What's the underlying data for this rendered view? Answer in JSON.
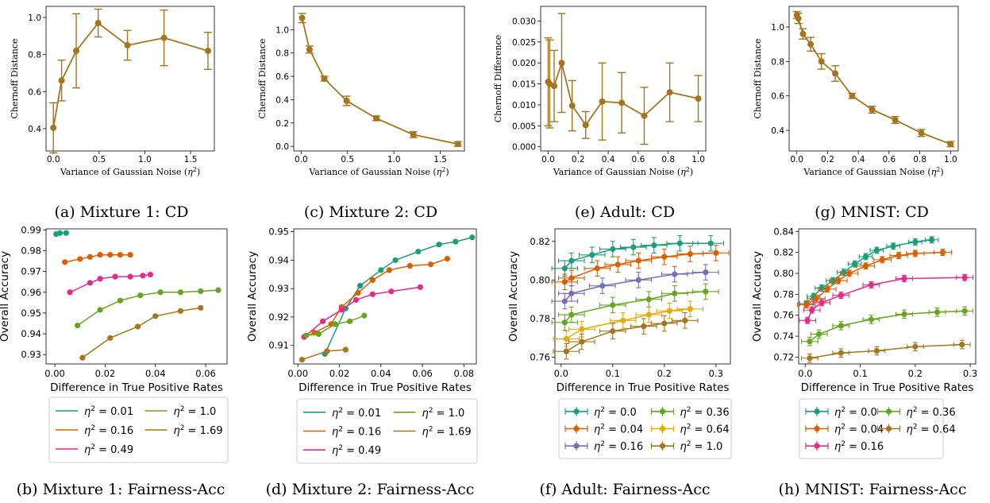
{
  "chart_data": [
    {
      "panel": "a",
      "caption": "(a) Mixture 1: CD",
      "type": "line",
      "xlabel": "Variance of Gaussian Noise (η²)",
      "ylabel": "Chernoff Distance",
      "xlim": [
        -0.08,
        1.76
      ],
      "ylim": [
        0.28,
        1.06
      ],
      "xticks": [
        0.0,
        0.5,
        1.0,
        1.5
      ],
      "xticklabels": [
        "0.0",
        "0.5",
        "1.0",
        "1.5"
      ],
      "yticks": [
        0.4,
        0.6,
        0.8,
        1.0
      ],
      "yticklabels": [
        "0.4",
        "0.6",
        "0.8",
        "1.0"
      ],
      "color": "#a5741e",
      "x": [
        0.0,
        0.09,
        0.25,
        0.49,
        0.81,
        1.21,
        1.69
      ],
      "y": [
        0.405,
        0.66,
        0.82,
        0.97,
        0.85,
        0.89,
        0.82
      ],
      "err": [
        0.135,
        0.11,
        0.2,
        0.075,
        0.08,
        0.15,
        0.1
      ]
    },
    {
      "panel": "c",
      "caption": "(c) Mixture 2: CD",
      "type": "line",
      "xlabel": "Variance of Gaussian Noise (η²)",
      "ylabel": "Chernoff Distance",
      "xlim": [
        -0.08,
        1.76
      ],
      "ylim": [
        -0.04,
        1.2
      ],
      "xticks": [
        0.0,
        0.5,
        1.0,
        1.5
      ],
      "xticklabels": [
        "0.0",
        "0.5",
        "1.0",
        "1.5"
      ],
      "yticks": [
        0.0,
        0.2,
        0.4,
        0.6,
        0.8,
        1.0
      ],
      "yticklabels": [
        "0.0",
        "0.2",
        "0.4",
        "0.6",
        "0.8",
        "1.0"
      ],
      "color": "#a5741e",
      "x": [
        0.01,
        0.09,
        0.25,
        0.49,
        0.81,
        1.21,
        1.69
      ],
      "y": [
        1.1,
        0.83,
        0.58,
        0.39,
        0.24,
        0.1,
        0.02
      ],
      "err": [
        0.04,
        0.03,
        0.02,
        0.04,
        0.02,
        0.025,
        0.02
      ]
    },
    {
      "panel": "e",
      "caption": "(e) Adult: CD",
      "type": "line",
      "xlabel": "Variance of Gaussian Noise (η²)",
      "ylabel": "Chernoff Difference",
      "xlim": [
        -0.05,
        1.05
      ],
      "ylim": [
        -0.001,
        0.0335
      ],
      "xticks": [
        0.0,
        0.2,
        0.4,
        0.6,
        0.8,
        1.0
      ],
      "xticklabels": [
        "0.0",
        "0.2",
        "0.4",
        "0.6",
        "0.8",
        "1.0"
      ],
      "yticks": [
        0.0,
        0.005,
        0.01,
        0.015,
        0.02,
        0.025,
        0.03
      ],
      "yticklabels": [
        "0.000",
        "0.005",
        "0.010",
        "0.015",
        "0.020",
        "0.025",
        "0.030"
      ],
      "color": "#a5741e",
      "x": [
        0.0,
        0.01,
        0.04,
        0.09,
        0.16,
        0.25,
        0.36,
        0.49,
        0.64,
        0.81,
        1.0
      ],
      "y": [
        0.0155,
        0.015,
        0.0145,
        0.02,
        0.0098,
        0.0052,
        0.0108,
        0.0105,
        0.0074,
        0.013,
        0.0115
      ],
      "err": [
        0.0105,
        0.0105,
        0.0085,
        0.0118,
        0.006,
        0.0032,
        0.0092,
        0.0072,
        0.0068,
        0.007,
        0.0055
      ]
    },
    {
      "panel": "g",
      "caption": "(g) MNIST: CD",
      "type": "line",
      "xlabel": "Variance of Gaussian Noise (η²)",
      "ylabel": "Chernoff Distance",
      "xlim": [
        -0.05,
        1.05
      ],
      "ylim": [
        0.28,
        1.12
      ],
      "xticks": [
        0.0,
        0.2,
        0.4,
        0.6,
        0.8,
        1.0
      ],
      "xticklabels": [
        "0.0",
        "0.2",
        "0.4",
        "0.6",
        "0.8",
        "1.0"
      ],
      "yticks": [
        0.4,
        0.6,
        0.8,
        1.0
      ],
      "yticklabels": [
        "0.4",
        "0.6",
        "0.8",
        "1.0"
      ],
      "color": "#a5741e",
      "x": [
        0.0,
        0.01,
        0.04,
        0.09,
        0.16,
        0.25,
        0.36,
        0.49,
        0.64,
        0.81,
        1.0
      ],
      "y": [
        1.07,
        1.05,
        0.96,
        0.9,
        0.8,
        0.73,
        0.6,
        0.52,
        0.46,
        0.385,
        0.32
      ],
      "err": [
        0.02,
        0.03,
        0.03,
        0.04,
        0.045,
        0.045,
        0.015,
        0.02,
        0.02,
        0.02,
        0.015
      ]
    },
    {
      "panel": "b",
      "caption": "(b) Mixture 1: Fairness-Acc",
      "type": "line",
      "xlabel": "Difference in True Positive Rates",
      "ylabel": "Overall Accuracy",
      "xlim": [
        -0.0035,
        0.0685
      ],
      "ylim": [
        0.9255,
        0.9905
      ],
      "xticks": [
        0.0,
        0.02,
        0.04,
        0.06
      ],
      "xticklabels": [
        "0.00",
        "0.02",
        "0.04",
        "0.06"
      ],
      "yticks": [
        0.93,
        0.94,
        0.95,
        0.96,
        0.97,
        0.98,
        0.99
      ],
      "yticklabels": [
        "0.93",
        "0.94",
        "0.95",
        "0.96",
        "0.97",
        "0.98",
        "0.99"
      ],
      "legend": {
        "placement": "below",
        "ncol": 2
      },
      "series": [
        {
          "name": "η² = 0.01",
          "color": "#1b9e77",
          "x": [
            0.0005,
            0.002,
            0.0045
          ],
          "y": [
            0.988,
            0.9885,
            0.9885
          ]
        },
        {
          "name": "η² = 0.16",
          "color": "#d95f02",
          "x": [
            0.004,
            0.01,
            0.014,
            0.018,
            0.022,
            0.026,
            0.03
          ],
          "y": [
            0.9745,
            0.976,
            0.977,
            0.978,
            0.978,
            0.978,
            0.978
          ]
        },
        {
          "name": "η² = 0.49",
          "color": "#e7298a",
          "x": [
            0.006,
            0.014,
            0.018,
            0.024,
            0.03,
            0.035,
            0.038
          ],
          "y": [
            0.96,
            0.9645,
            0.9665,
            0.9675,
            0.9675,
            0.968,
            0.9685
          ]
        },
        {
          "name": "η² = 1.0",
          "color": "#66a61e",
          "x": [
            0.009,
            0.018,
            0.026,
            0.034,
            0.042,
            0.05,
            0.058,
            0.065
          ],
          "y": [
            0.944,
            0.9515,
            0.956,
            0.9585,
            0.96,
            0.96,
            0.9605,
            0.961
          ]
        },
        {
          "name": "η² = 1.69",
          "color": "#a6761d",
          "x": [
            0.011,
            0.022,
            0.033,
            0.04,
            0.05,
            0.058
          ],
          "y": [
            0.9285,
            0.938,
            0.9435,
            0.9485,
            0.951,
            0.9525
          ]
        }
      ]
    },
    {
      "panel": "d",
      "caption": "(d) Mixture 2: Fairness-Acc",
      "type": "line",
      "xlabel": "Difference in True Positive Rates",
      "ylabel": "Overall Accuracy",
      "xlim": [
        -0.002,
        0.086
      ],
      "ylim": [
        0.9035,
        0.951
      ],
      "xticks": [
        0.0,
        0.02,
        0.04,
        0.06,
        0.08
      ],
      "xticklabels": [
        "0.00",
        "0.02",
        "0.04",
        "0.06",
        "0.08"
      ],
      "yticks": [
        0.91,
        0.92,
        0.93,
        0.94,
        0.95
      ],
      "yticklabels": [
        "0.91",
        "0.92",
        "0.93",
        "0.94",
        "0.95"
      ],
      "legend": {
        "placement": "below",
        "ncol": 2
      },
      "series": [
        {
          "name": "η² = 0.01",
          "color": "#1b9e77",
          "x": [
            0.013,
            0.023,
            0.03,
            0.04,
            0.047,
            0.058,
            0.068,
            0.076,
            0.084
          ],
          "y": [
            0.907,
            0.923,
            0.931,
            0.9365,
            0.94,
            0.943,
            0.9455,
            0.9465,
            0.948
          ]
        },
        {
          "name": "η² = 0.16",
          "color": "#d95f02",
          "x": [
            0.003,
            0.008,
            0.016,
            0.021,
            0.029,
            0.036,
            0.044,
            0.054,
            0.064,
            0.072
          ],
          "y": [
            0.913,
            0.9145,
            0.9175,
            0.9235,
            0.9285,
            0.933,
            0.9365,
            0.938,
            0.9385,
            0.9405
          ]
        },
        {
          "name": "η² = 0.49",
          "color": "#e7298a",
          "x": [
            0.003,
            0.012,
            0.021,
            0.028,
            0.036,
            0.045,
            0.059
          ],
          "y": [
            0.913,
            0.9185,
            0.9225,
            0.926,
            0.928,
            0.929,
            0.9305
          ]
        },
        {
          "name": "η² = 1.0",
          "color": "#66a61e",
          "x": [
            0.004,
            0.01,
            0.018,
            0.025,
            0.032
          ],
          "y": [
            0.9135,
            0.914,
            0.9175,
            0.9185,
            0.9205
          ]
        },
        {
          "name": "η² = 1.69",
          "color": "#a6761d",
          "x": [
            0.002,
            0.014,
            0.023
          ],
          "y": [
            0.905,
            0.908,
            0.9085
          ]
        }
      ]
    },
    {
      "panel": "f",
      "caption": "(f) Adult: Fairness-Acc",
      "type": "line",
      "xlabel": "Difference in True Positive Rates",
      "ylabel": "Overall Accuracy",
      "xlim": [
        -0.012,
        0.328
      ],
      "ylim": [
        0.7565,
        0.8265
      ],
      "xticks": [
        0.0,
        0.1,
        0.2,
        0.3
      ],
      "xticklabels": [
        "0.0",
        "0.1",
        "0.2",
        "0.3"
      ],
      "yticks": [
        0.76,
        0.78,
        0.8,
        0.82
      ],
      "yticklabels": [
        "0.76",
        "0.78",
        "0.80",
        "0.82"
      ],
      "legend": {
        "placement": "below",
        "ncol": 2
      },
      "series": [
        {
          "name": "η² = 0.0",
          "color": "#1b9e77",
          "x": [
            0.007,
            0.02,
            0.06,
            0.1,
            0.14,
            0.18,
            0.23,
            0.29
          ],
          "y": [
            0.806,
            0.81,
            0.813,
            0.816,
            0.817,
            0.818,
            0.819,
            0.819
          ],
          "xerr": 0.025,
          "yerr": 0.004
        },
        {
          "name": "η² = 0.04",
          "color": "#d95f02",
          "x": [
            0.007,
            0.02,
            0.07,
            0.11,
            0.15,
            0.2,
            0.25,
            0.3
          ],
          "y": [
            0.799,
            0.801,
            0.806,
            0.808,
            0.81,
            0.812,
            0.8135,
            0.814
          ],
          "xerr": 0.025,
          "yerr": 0.004
        },
        {
          "name": "η² = 0.16",
          "color": "#7570b3",
          "x": [
            0.007,
            0.02,
            0.08,
            0.15,
            0.22,
            0.28
          ],
          "y": [
            0.789,
            0.793,
            0.797,
            0.8,
            0.803,
            0.804
          ],
          "xerr": 0.025,
          "yerr": 0.004
        },
        {
          "name": "η² = 0.36",
          "color": "#66a61e",
          "x": [
            0.007,
            0.02,
            0.1,
            0.17,
            0.22,
            0.28
          ],
          "y": [
            0.778,
            0.782,
            0.787,
            0.79,
            0.793,
            0.794
          ],
          "xerr": 0.025,
          "yerr": 0.004
        },
        {
          "name": "η² = 0.64",
          "color": "#e6ab02",
          "x": [
            0.01,
            0.04,
            0.12,
            0.17,
            0.21,
            0.25
          ],
          "y": [
            0.7695,
            0.7745,
            0.779,
            0.782,
            0.784,
            0.785
          ],
          "xerr": 0.025,
          "yerr": 0.004
        },
        {
          "name": "η² = 1.0",
          "color": "#a6761d",
          "x": [
            0.01,
            0.04,
            0.1,
            0.16,
            0.2,
            0.24
          ],
          "y": [
            0.763,
            0.768,
            0.7735,
            0.776,
            0.7775,
            0.779
          ],
          "xerr": 0.025,
          "yerr": 0.004
        }
      ]
    },
    {
      "panel": "h",
      "caption": "(h) MNIST: Fairness-Acc",
      "type": "line",
      "xlabel": "Difference in True Positive Rates",
      "ylabel": "Overall Accuracy",
      "xlim": [
        -0.012,
        0.31
      ],
      "ylim": [
        0.7135,
        0.8425
      ],
      "xticks": [
        0.0,
        0.1,
        0.2,
        0.3
      ],
      "xticklabels": [
        "0.0",
        "0.1",
        "0.2",
        "0.3"
      ],
      "yticks": [
        0.72,
        0.74,
        0.76,
        0.78,
        0.8,
        0.82,
        0.84
      ],
      "yticklabels": [
        "0.72",
        "0.74",
        "0.76",
        "0.78",
        "0.80",
        "0.82",
        "0.84"
      ],
      "legend": {
        "placement": "below",
        "ncol": 2
      },
      "series": [
        {
          "name": "η² = 0.0",
          "color": "#1b9e77",
          "x": [
            0.002,
            0.015,
            0.03,
            0.05,
            0.07,
            0.09,
            0.11,
            0.13,
            0.16,
            0.2,
            0.23
          ],
          "y": [
            0.771,
            0.778,
            0.786,
            0.793,
            0.801,
            0.809,
            0.816,
            0.822,
            0.826,
            0.83,
            0.832
          ],
          "xerr": 0.012,
          "yerr": 0.003
        },
        {
          "name": "η² = 0.04",
          "color": "#d95f02",
          "x": [
            0.002,
            0.02,
            0.04,
            0.06,
            0.08,
            0.11,
            0.14,
            0.17,
            0.2,
            0.25
          ],
          "y": [
            0.77,
            0.776,
            0.785,
            0.793,
            0.8,
            0.807,
            0.813,
            0.817,
            0.819,
            0.82
          ],
          "xerr": 0.016,
          "yerr": 0.003
        },
        {
          "name": "η² = 0.16",
          "color": "#e7298a",
          "x": [
            0.004,
            0.012,
            0.03,
            0.065,
            0.12,
            0.18,
            0.29
          ],
          "y": [
            0.755,
            0.765,
            0.772,
            0.779,
            0.789,
            0.795,
            0.796
          ],
          "xerr": 0.015,
          "yerr": 0.003
        },
        {
          "name": "η² = 0.36",
          "color": "#66a61e",
          "x": [
            0.008,
            0.025,
            0.065,
            0.12,
            0.18,
            0.24,
            0.29
          ],
          "y": [
            0.735,
            0.742,
            0.75,
            0.756,
            0.761,
            0.763,
            0.764
          ],
          "xerr": 0.015,
          "yerr": 0.004
        },
        {
          "name": "η² = 0.64",
          "color": "#a6761d",
          "x": [
            0.008,
            0.065,
            0.13,
            0.2,
            0.285
          ],
          "y": [
            0.719,
            0.724,
            0.726,
            0.73,
            0.732
          ],
          "xerr": 0.015,
          "yerr": 0.004
        }
      ]
    }
  ]
}
